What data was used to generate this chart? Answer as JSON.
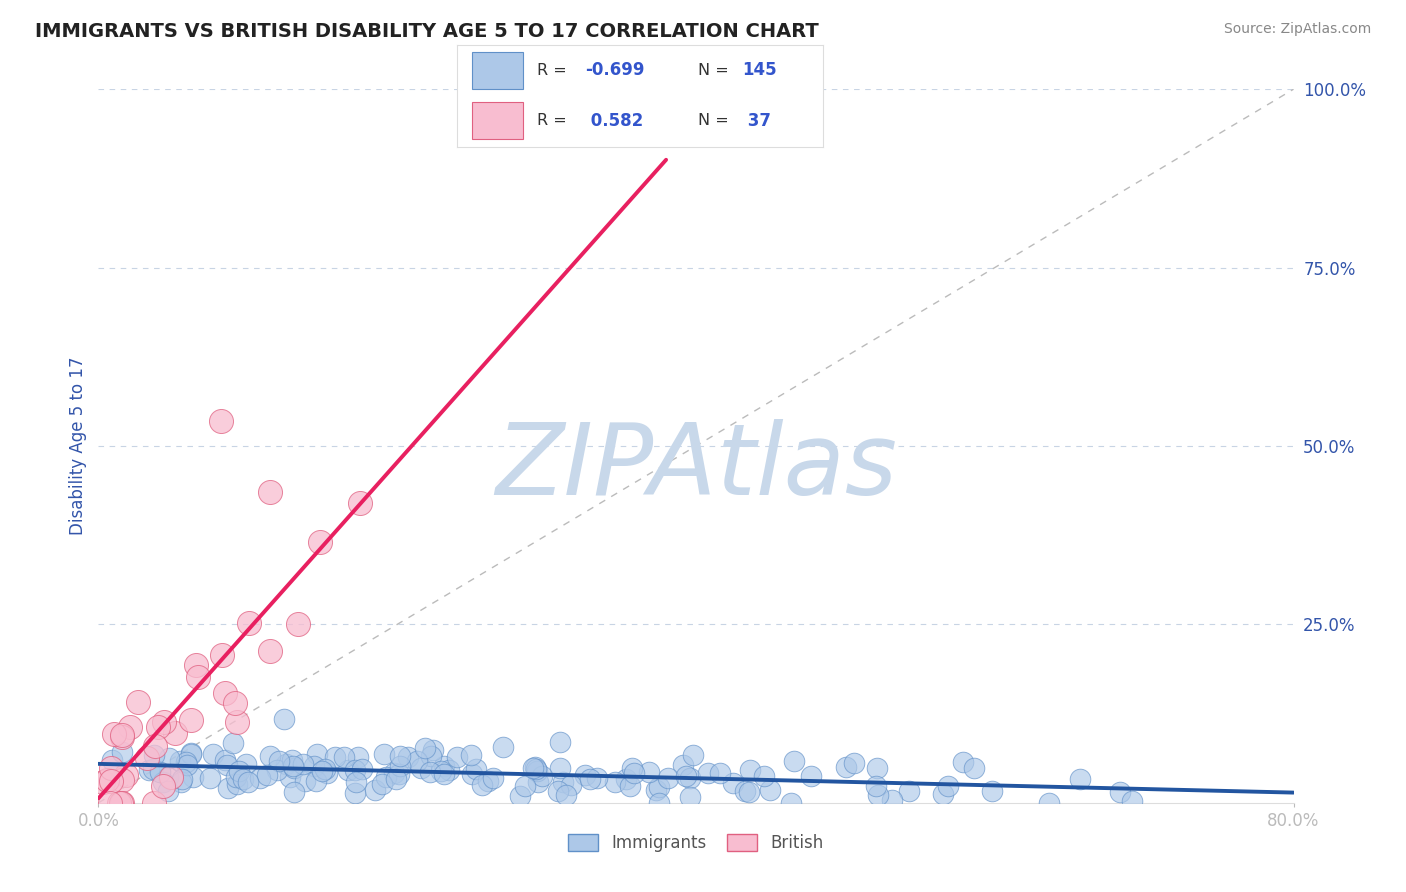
{
  "title": "IMMIGRANTS VS BRITISH DISABILITY AGE 5 TO 17 CORRELATION CHART",
  "source_text": "Source: ZipAtlas.com",
  "ylabel": "Disability Age 5 to 17",
  "xlim": [
    0.0,
    0.8
  ],
  "ylim": [
    0.0,
    1.0
  ],
  "ytick_positions": [
    0.0,
    0.25,
    0.5,
    0.75,
    1.0
  ],
  "ytick_labels": [
    "",
    "25.0%",
    "50.0%",
    "75.0%",
    "100.0%"
  ],
  "immigrants_R": -0.699,
  "immigrants_N": 145,
  "british_R": 0.582,
  "british_N": 37,
  "immigrants_color": "#adc8e8",
  "immigrants_edge": "#6090c8",
  "immigrants_line_color": "#2255a0",
  "british_color": "#f8bdd0",
  "british_edge": "#e06080",
  "british_line_color": "#e82060",
  "diagonal_line_color": "#bbbbbb",
  "grid_color": "#c8d4e4",
  "watermark_color": "#c8d8ea",
  "watermark_text": "ZIPAtlas",
  "title_color": "#222222",
  "axis_label_color": "#3355aa",
  "tick_label_color": "#3355aa",
  "legend_R_color": "#3355cc",
  "legend_text_color": "#333333",
  "background_color": "#ffffff"
}
